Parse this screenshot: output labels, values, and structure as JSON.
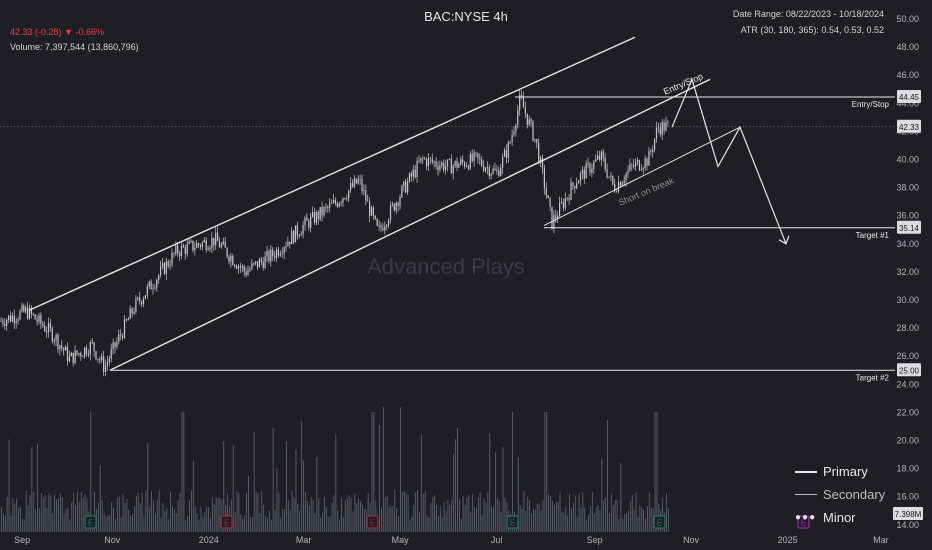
{
  "header": {
    "title": "BAC:NYSE 4h",
    "price": "42.33",
    "change": "(-0.28)",
    "change_arrow": "▼",
    "change_pct": "-0.66%",
    "volume_label": "Volume:",
    "volume_value": "7,397,544 (13,860,796)",
    "date_range": "Date Range: 08/22/2023 - 10/18/2024",
    "atr": "ATR (30, 180, 365): 0.54, 0.53, 0.52"
  },
  "watermark": "Advanced Plays",
  "legend": {
    "primary": "Primary",
    "secondary": "Secondary",
    "minor": "Minor"
  },
  "colors": {
    "background": "#1e1f25",
    "candles": "#c8c8c8",
    "lines": "#e8e8e8",
    "price_red": "#f23645",
    "earnings_green": "#1f7a6a",
    "earnings_red": "#a12a3a",
    "event_purple": "#9c27b0"
  },
  "chart_data": {
    "type": "line",
    "title": "BAC:NYSE 4h",
    "x_ticks": [
      "Sep",
      "Nov",
      "2024",
      "Mar",
      "May",
      "Jul",
      "Sep",
      "Nov",
      "2025",
      "Mar"
    ],
    "y_ticks": [
      14,
      16,
      18,
      20,
      22,
      24,
      26,
      28,
      30,
      32,
      34,
      36,
      38,
      40,
      42,
      44,
      46,
      48,
      50
    ],
    "ylim": [
      13.5,
      51
    ],
    "price_path": {
      "x": [
        "2023-08-22",
        "2023-09-08",
        "2023-09-25",
        "2023-10-05",
        "2023-10-19",
        "2023-10-27",
        "2023-11-15",
        "2023-12-12",
        "2024-01-05",
        "2024-01-24",
        "2024-02-10",
        "2024-03-01",
        "2024-03-20",
        "2024-04-05",
        "2024-04-17",
        "2024-05-01",
        "2024-05-15",
        "2024-06-01",
        "2024-06-18",
        "2024-07-01",
        "2024-07-09",
        "2024-07-16",
        "2024-07-26",
        "2024-08-05",
        "2024-08-20",
        "2024-09-05",
        "2024-09-13",
        "2024-09-25",
        "2024-10-05",
        "2024-10-11",
        "2024-10-18"
      ],
      "y": [
        28.5,
        29.2,
        27.5,
        25.8,
        26.8,
        25.2,
        29.5,
        33.5,
        34.3,
        32.0,
        33.2,
        35.3,
        36.8,
        38.5,
        34.8,
        37.5,
        40.0,
        39.5,
        40.0,
        39.0,
        41.0,
        44.3,
        41.2,
        35.5,
        38.5,
        40.2,
        38.0,
        39.5,
        40.0,
        42.3,
        42.33
      ]
    },
    "volume": {
      "last": "7.398M"
    },
    "price_labels": [
      {
        "value": "44.45",
        "name": "Entry/Stop"
      },
      {
        "value": "42.33",
        "name": "last"
      },
      {
        "value": "35.14",
        "name": "Target #1"
      },
      {
        "value": "25.00",
        "name": "Target #2"
      }
    ],
    "annotations": [
      "Entry/Stop",
      "Short on break",
      "Entry/Stop",
      "Target #1",
      "Target #2"
    ],
    "earnings_markers": [
      "E",
      "E",
      "E",
      "E",
      "E",
      "E"
    ]
  }
}
